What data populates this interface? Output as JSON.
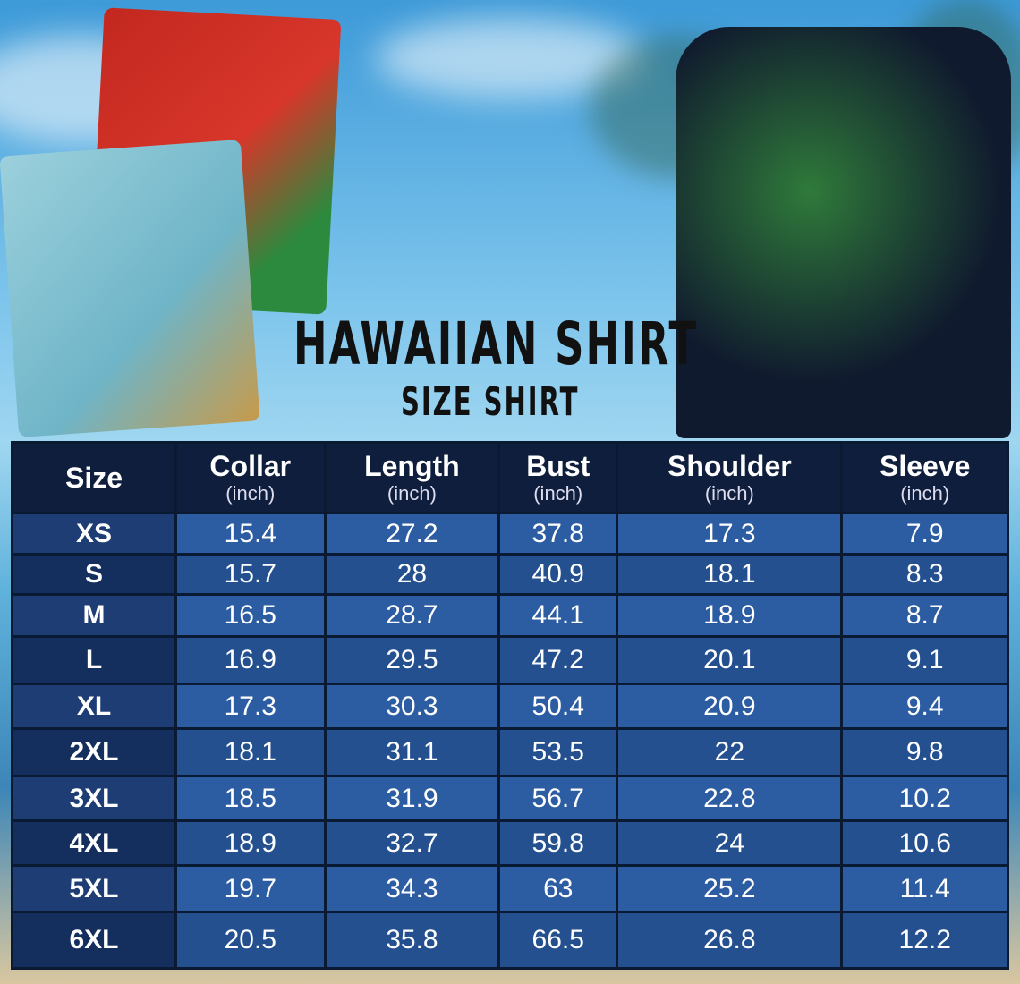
{
  "title": "HAWAIIAN SHIRT",
  "subtitle": "SIZE SHIRT",
  "table": {
    "headers": [
      {
        "label": "Size",
        "unit": ""
      },
      {
        "label": "Collar",
        "unit": "(inch)"
      },
      {
        "label": "Length",
        "unit": "(inch)"
      },
      {
        "label": "Bust",
        "unit": "(inch)"
      },
      {
        "label": "Shoulder",
        "unit": "(inch)"
      },
      {
        "label": "Sleeve",
        "unit": "(inch)"
      }
    ],
    "rows": [
      [
        "XS",
        "15.4",
        "27.2",
        "37.8",
        "17.3",
        "7.9"
      ],
      [
        "S",
        "15.7",
        "28",
        "40.9",
        "18.1",
        "8.3"
      ],
      [
        "M",
        "16.5",
        "28.7",
        "44.1",
        "18.9",
        "8.7"
      ],
      [
        "L",
        "16.9",
        "29.5",
        "47.2",
        "20.1",
        "9.1"
      ],
      [
        "XL",
        "17.3",
        "30.3",
        "50.4",
        "20.9",
        "9.4"
      ],
      [
        "2XL",
        "18.1",
        "31.1",
        "53.5",
        "22",
        "9.8"
      ],
      [
        "3XL",
        "18.5",
        "31.9",
        "56.7",
        "22.8",
        "10.2"
      ],
      [
        "4XL",
        "18.9",
        "32.7",
        "59.8",
        "24",
        "10.6"
      ],
      [
        "5XL",
        "19.7",
        "34.3",
        "63",
        "25.2",
        "11.4"
      ],
      [
        "6XL",
        "20.5",
        "35.8",
        "66.5",
        "26.8",
        "12.2"
      ]
    ]
  },
  "colors": {
    "header_bg": "#0f1e3d",
    "cell_bg": "#2c5ca1",
    "size_bg": "#1d3d74"
  }
}
